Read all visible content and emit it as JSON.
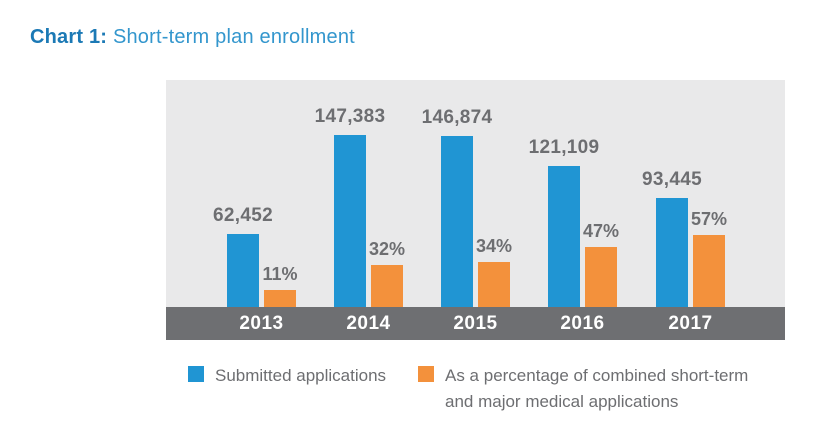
{
  "title": {
    "prefix": "Chart 1:",
    "suffix": "Short-term plan enrollment"
  },
  "chart_data": {
    "type": "bar",
    "title": "Chart 1: Short-term plan enrollment",
    "categories": [
      "2013",
      "2014",
      "2015",
      "2016",
      "2017"
    ],
    "series": [
      {
        "name": "Submitted applications",
        "values": [
          62452,
          147383,
          146874,
          121109,
          93445
        ],
        "labels": [
          "62,452",
          "147,383",
          "146,874",
          "121,109",
          "93,445"
        ],
        "color": "#2095d3"
      },
      {
        "name": "As a percentage of combined short-term and major medical applications",
        "values": [
          11,
          32,
          34,
          47,
          57
        ],
        "labels": [
          "11%",
          "32%",
          "34%",
          "47%",
          "57%"
        ],
        "color": "#f3913c"
      }
    ],
    "xlabel": "",
    "ylabel": "",
    "grid": false,
    "legend_position": "bottom",
    "plot_background": "#e9e9ea",
    "axis_band_color": "#6e6f72",
    "label_color": "#6d6e71"
  },
  "legend": {
    "item1": "Submitted applications",
    "item2": "As a percentage of combined short-term\nand major medical applications"
  },
  "colors": {
    "blue": "#2095d3",
    "orange": "#f3913c",
    "title_prefix": "#1b79b5",
    "title_suffix": "#3396cd",
    "label_gray": "#6d6e71",
    "plot_bg": "#e9e9ea",
    "axis_band": "#6e6f72"
  }
}
